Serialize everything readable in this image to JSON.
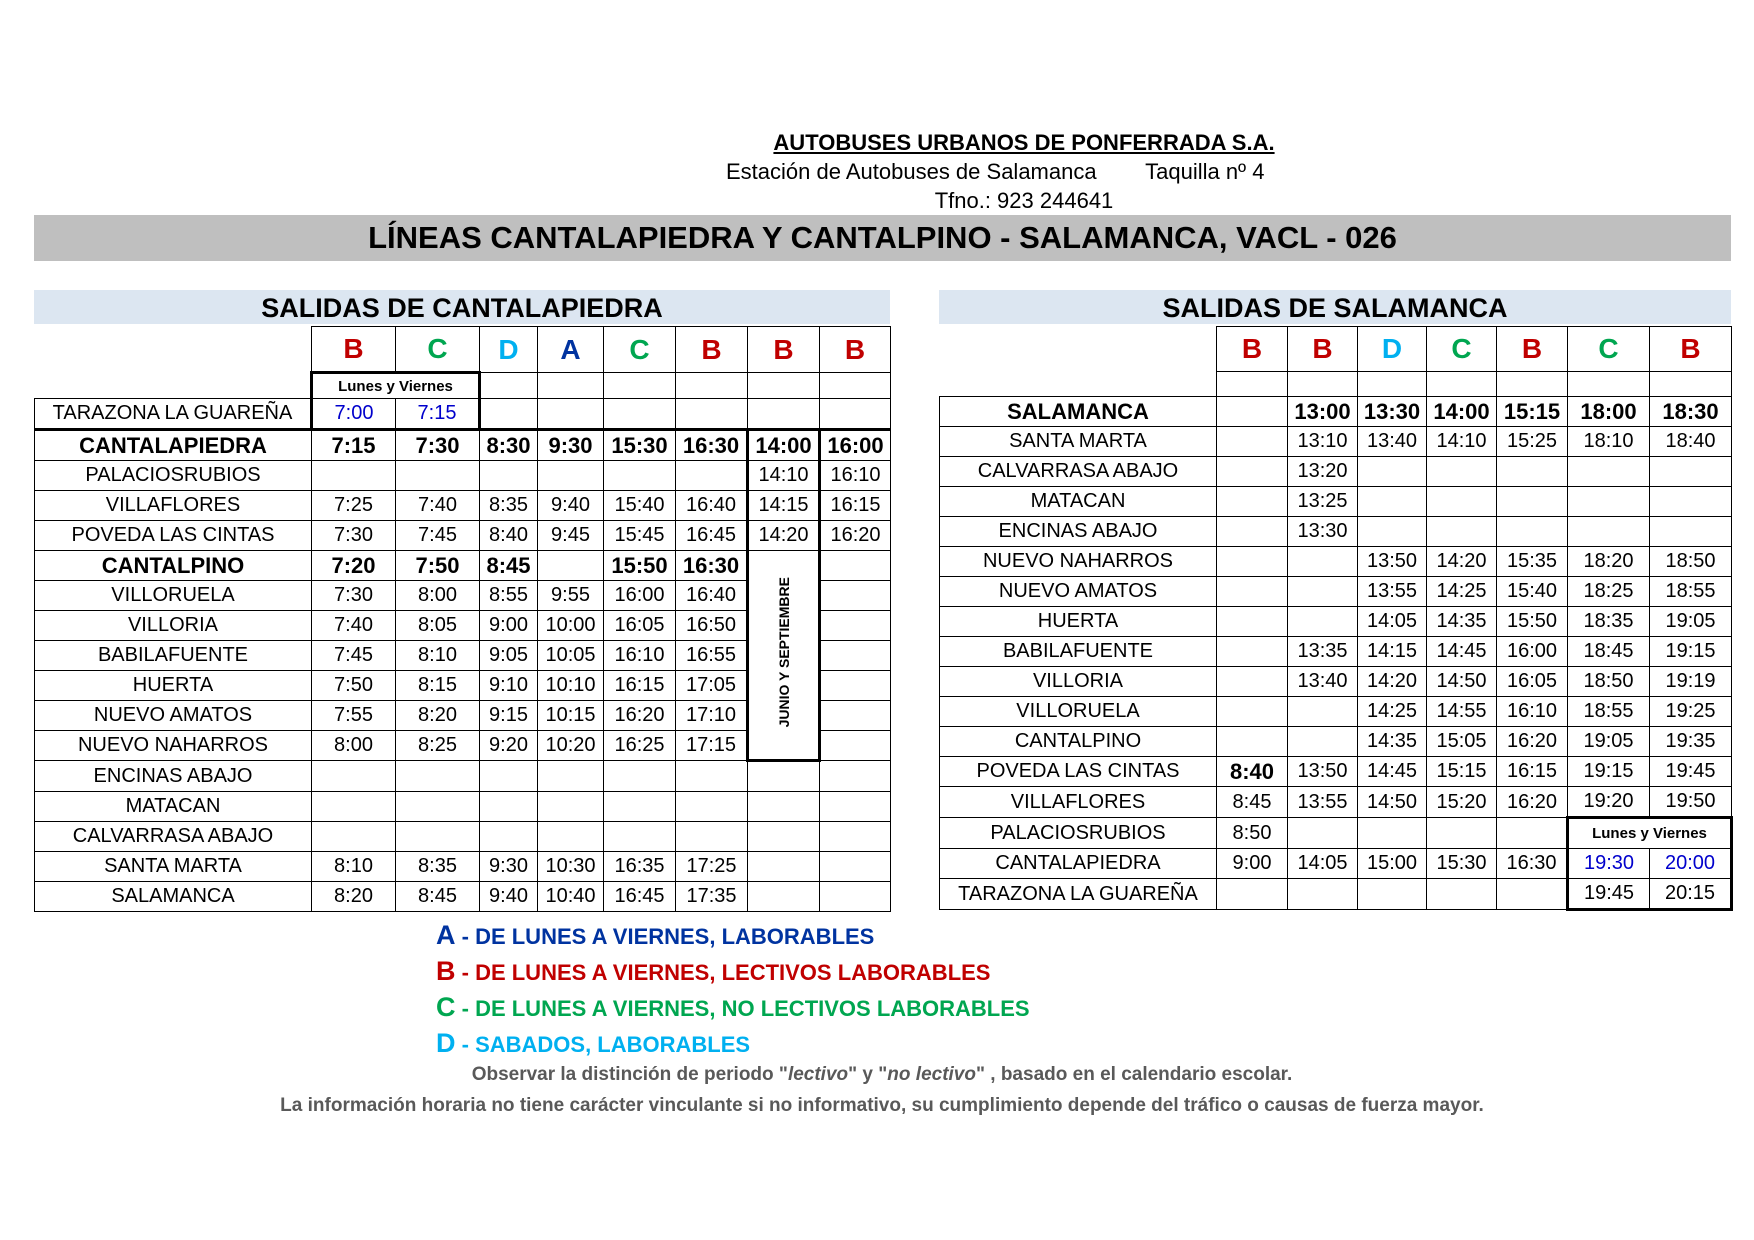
{
  "header": {
    "company": "AUTOBUSES URBANOS DE PONFERRADA S.A.",
    "station": "Estación de Autobuses de Salamanca",
    "ticket_office": "Taquilla nº 4",
    "phone": "Tfno.: 923 244641",
    "title": "LÍNEAS CANTALAPIEDRA Y CANTALPINO - SALAMANCA, VACL - 026"
  },
  "colors": {
    "A": "#0033a0",
    "B": "#c00000",
    "C": "#00a650",
    "D": "#00b0f0",
    "blue_time": "#0000cc",
    "title_bar": "#bfbfbf",
    "section_bar": "#dce6f1"
  },
  "left": {
    "title": "SALIDAS DE CANTALAPIEDRA",
    "columns": [
      "B",
      "C",
      "D",
      "A",
      "C",
      "B",
      "B",
      "B"
    ],
    "note": "Lunes y Viernes",
    "vertical_note": "JUNIO Y SEPTIEMBRE",
    "rows": [
      {
        "stop": "TARAZONA LA GUAREÑA",
        "times": [
          "7:00",
          "7:15",
          "",
          "",
          "",
          "",
          "",
          ""
        ]
      },
      {
        "stop": "CANTALAPIEDRA",
        "bold": true,
        "times": [
          "7:15",
          "7:30",
          "8:30",
          "9:30",
          "15:30",
          "16:30",
          "14:00",
          "16:00"
        ]
      },
      {
        "stop": "PALACIOSRUBIOS",
        "times": [
          "",
          "",
          "",
          "",
          "",
          "",
          "14:10",
          "16:10"
        ]
      },
      {
        "stop": "VILLAFLORES",
        "times": [
          "7:25",
          "7:40",
          "8:35",
          "9:40",
          "15:40",
          "16:40",
          "14:15",
          "16:15"
        ]
      },
      {
        "stop": "POVEDA LAS CINTAS",
        "times": [
          "7:30",
          "7:45",
          "8:40",
          "9:45",
          "15:45",
          "16:45",
          "14:20",
          "16:20"
        ]
      },
      {
        "stop": "CANTALPINO",
        "bold": true,
        "times": [
          "7:20",
          "7:50",
          "8:45",
          "",
          "15:50",
          "16:30",
          "",
          ""
        ]
      },
      {
        "stop": "VILLORUELA",
        "times": [
          "7:30",
          "8:00",
          "8:55",
          "9:55",
          "16:00",
          "16:40",
          "",
          ""
        ]
      },
      {
        "stop": "VILLORIA",
        "times": [
          "7:40",
          "8:05",
          "9:00",
          "10:00",
          "16:05",
          "16:50",
          "",
          ""
        ]
      },
      {
        "stop": "BABILAFUENTE",
        "times": [
          "7:45",
          "8:10",
          "9:05",
          "10:05",
          "16:10",
          "16:55",
          "",
          ""
        ]
      },
      {
        "stop": "HUERTA",
        "times": [
          "7:50",
          "8:15",
          "9:10",
          "10:10",
          "16:15",
          "17:05",
          "",
          ""
        ]
      },
      {
        "stop": "NUEVO AMATOS",
        "times": [
          "7:55",
          "8:20",
          "9:15",
          "10:15",
          "16:20",
          "17:10",
          "",
          ""
        ]
      },
      {
        "stop": "NUEVO NAHARROS",
        "times": [
          "8:00",
          "8:25",
          "9:20",
          "10:20",
          "16:25",
          "17:15",
          "",
          ""
        ]
      },
      {
        "stop": "ENCINAS ABAJO",
        "times": [
          "",
          "",
          "",
          "",
          "",
          "",
          "",
          ""
        ]
      },
      {
        "stop": "MATACAN",
        "times": [
          "",
          "",
          "",
          "",
          "",
          "",
          "",
          ""
        ]
      },
      {
        "stop": "CALVARRASA ABAJO",
        "times": [
          "",
          "",
          "",
          "",
          "",
          "",
          "",
          ""
        ]
      },
      {
        "stop": "SANTA MARTA",
        "times": [
          "8:10",
          "8:35",
          "9:30",
          "10:30",
          "16:35",
          "17:25",
          "",
          ""
        ]
      },
      {
        "stop": "SALAMANCA",
        "times": [
          "8:20",
          "8:45",
          "9:40",
          "10:40",
          "16:45",
          "17:35",
          "",
          ""
        ]
      }
    ]
  },
  "right": {
    "title": "SALIDAS DE SALAMANCA",
    "columns": [
      "B",
      "B",
      "D",
      "C",
      "B",
      "C",
      "B"
    ],
    "note": "Lunes y Viernes",
    "rows": [
      {
        "stop": "SALAMANCA",
        "bold": true,
        "times": [
          "",
          "13:00",
          "13:30",
          "14:00",
          "15:15",
          "18:00",
          "18:30"
        ]
      },
      {
        "stop": "SANTA MARTA",
        "times": [
          "",
          "13:10",
          "13:40",
          "14:10",
          "15:25",
          "18:10",
          "18:40"
        ]
      },
      {
        "stop": "CALVARRASA ABAJO",
        "times": [
          "",
          "13:20",
          "",
          "",
          "",
          "",
          ""
        ]
      },
      {
        "stop": "MATACAN",
        "times": [
          "",
          "13:25",
          "",
          "",
          "",
          "",
          ""
        ]
      },
      {
        "stop": "ENCINAS ABAJO",
        "times": [
          "",
          "13:30",
          "",
          "",
          "",
          "",
          ""
        ]
      },
      {
        "stop": "NUEVO NAHARROS",
        "times": [
          "",
          "",
          "13:50",
          "14:20",
          "15:35",
          "18:20",
          "18:50"
        ]
      },
      {
        "stop": "NUEVO AMATOS",
        "times": [
          "",
          "",
          "13:55",
          "14:25",
          "15:40",
          "18:25",
          "18:55"
        ]
      },
      {
        "stop": "HUERTA",
        "times": [
          "",
          "",
          "14:05",
          "14:35",
          "15:50",
          "18:35",
          "19:05"
        ]
      },
      {
        "stop": "BABILAFUENTE",
        "times": [
          "",
          "13:35",
          "14:15",
          "14:45",
          "16:00",
          "18:45",
          "19:15"
        ]
      },
      {
        "stop": "VILLORIA",
        "times": [
          "",
          "13:40",
          "14:20",
          "14:50",
          "16:05",
          "18:50",
          "19:19"
        ]
      },
      {
        "stop": "VILLORUELA",
        "times": [
          "",
          "",
          "14:25",
          "14:55",
          "16:10",
          "18:55",
          "19:25"
        ]
      },
      {
        "stop": "CANTALPINO",
        "times": [
          "",
          "",
          "14:35",
          "15:05",
          "16:20",
          "19:05",
          "19:35"
        ]
      },
      {
        "stop": "POVEDA LAS CINTAS",
        "times": [
          "8:40",
          "13:50",
          "14:45",
          "15:15",
          "16:15",
          "19:15",
          "19:45"
        ]
      },
      {
        "stop": "VILLAFLORES",
        "times": [
          "8:45",
          "13:55",
          "14:50",
          "15:20",
          "16:20",
          "19:20",
          "19:50"
        ]
      },
      {
        "stop": "PALACIOSRUBIOS",
        "times": [
          "8:50",
          "",
          "",
          "",
          "",
          "",
          ""
        ]
      },
      {
        "stop": "CANTALAPIEDRA",
        "times": [
          "9:00",
          "14:05",
          "15:00",
          "15:30",
          "16:30",
          "19:30",
          "20:00"
        ]
      },
      {
        "stop": "TARAZONA LA GUAREÑA",
        "times": [
          "",
          "",
          "",
          "",
          "",
          "19:45",
          "20:15"
        ]
      }
    ]
  },
  "legend": [
    {
      "letter": "A",
      "sep": " - ",
      "text": "DE LUNES A VIERNES, LABORABLES"
    },
    {
      "letter": "B",
      "sep": " - ",
      "text": "DE LUNES A VIERNES, LECTIVOS LABORABLES"
    },
    {
      "letter": "C",
      "sep": " - ",
      "text": "DE LUNES A VIERNES, NO LECTIVOS LABORABLES"
    },
    {
      "letter": "D",
      "sep": " - ",
      "text": "SABADOS, LABORABLES"
    }
  ],
  "notes": {
    "line1_a": "Observar la distinción de periodo \"",
    "line1_b": "lectivo",
    "line1_c": "\" y \"",
    "line1_d": "no lectivo",
    "line1_e": "\" , basado en el calendario escolar.",
    "line2": "La información horaria no tiene carácter vinculante si no informativo, su cumplimiento depende del tráfico o causas de fuerza mayor."
  }
}
